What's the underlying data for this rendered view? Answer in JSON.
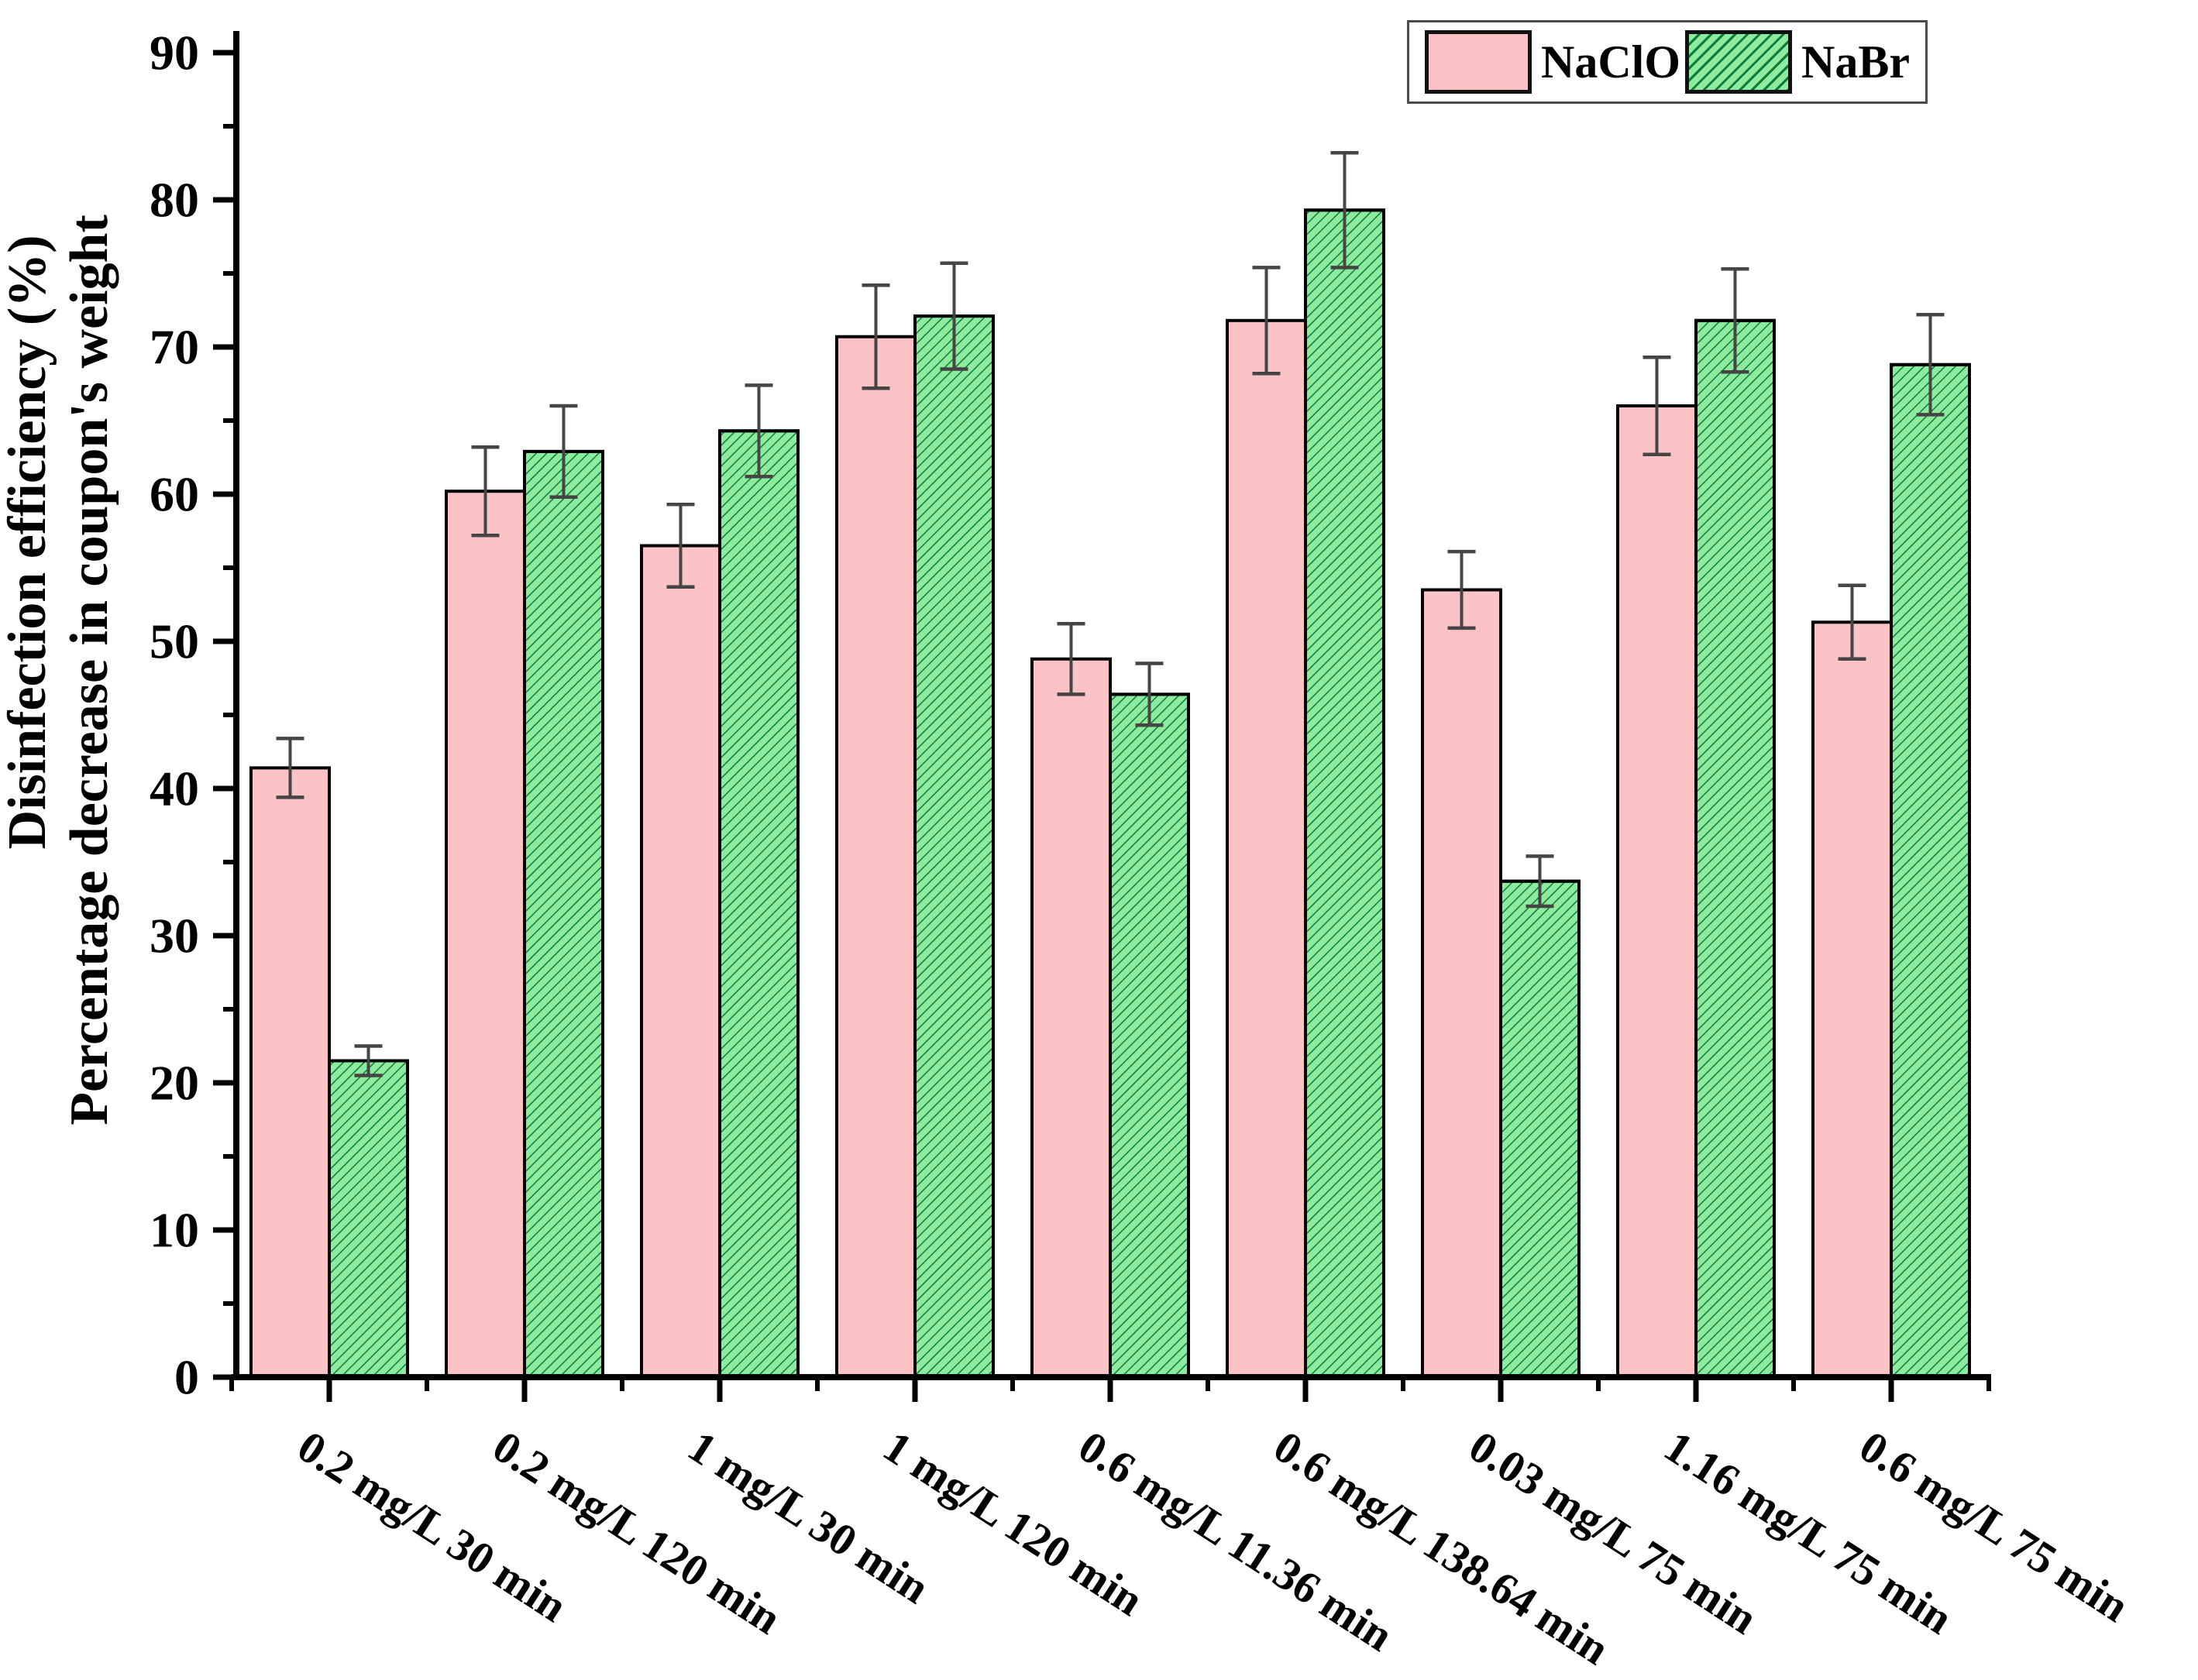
{
  "page": {
    "background": "#ffffff"
  },
  "legend": {
    "position": "top-right",
    "items": [
      {
        "label": "NaClO",
        "fill": "#fcc3c6",
        "hatch": false
      },
      {
        "label": "NaBr",
        "fill": "#8eeb9e",
        "hatch": true,
        "hatch_color": "#0b7c3e"
      }
    ]
  },
  "chart_data": {
    "type": "bar",
    "title": "",
    "xlabel": "",
    "ylabel_line1": "Disinfection efficiency (%)",
    "ylabel_line2": "Percentage decrease in coupon's weight",
    "categories": [
      "0.2 mg/L 30 min",
      "0.2 mg/L 120 min",
      "1 mg/L 30 min",
      "1 mg/L 120 min",
      "0.6 mg/L 11.36 min",
      "0.6 mg/L 138.64 min",
      "0.03 mg/L 75 min",
      "1.16 mg/L 75 min",
      "0.6 mg/L 75 min"
    ],
    "series": [
      {
        "name": "NaClO",
        "color": "#fcc3c6",
        "hatch": false,
        "values": [
          41.4,
          60.2,
          56.5,
          70.7,
          48.8,
          71.8,
          53.5,
          66.0,
          51.3
        ],
        "errors": [
          2.0,
          3.0,
          2.8,
          3.5,
          2.4,
          3.6,
          2.6,
          3.3,
          2.5
        ]
      },
      {
        "name": "NaBr",
        "color": "#8eeb9e",
        "hatch": true,
        "hatch_color": "#0b7c3e",
        "values": [
          21.5,
          62.9,
          64.3,
          72.1,
          46.4,
          79.3,
          33.7,
          71.8,
          68.8
        ],
        "errors": [
          1.0,
          3.1,
          3.1,
          3.6,
          2.1,
          3.9,
          1.7,
          3.5,
          3.4
        ]
      }
    ],
    "ylim": [
      0,
      90
    ],
    "ytick_major": 10,
    "ytick_minor": 5,
    "grid": false,
    "legend_position": "top-right",
    "error_bar_color": "#454545",
    "bar_border_color": "#000000",
    "axis_color": "#000000"
  }
}
